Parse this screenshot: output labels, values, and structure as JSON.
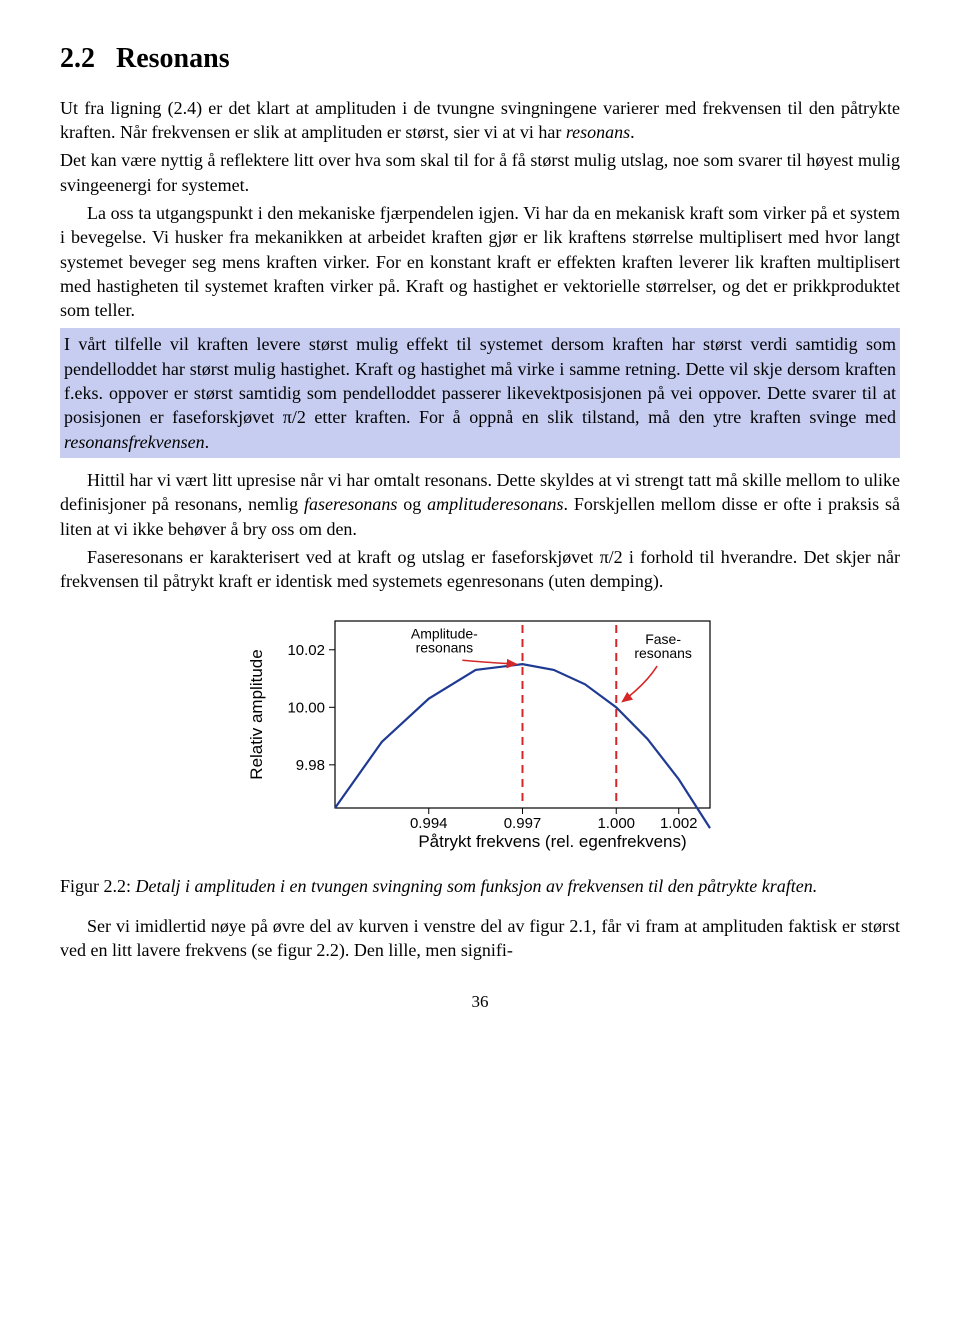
{
  "section": {
    "number": "2.2",
    "title": "Resonans"
  },
  "para1": "Ut fra ligning (2.4) er det klart at amplituden i de tvungne svingningene varierer med frekvensen til den påtrykte kraften. Når frekvensen er slik at amplituden er størst, sier vi at vi har ",
  "para1_em": "resonans",
  "para1_b": ".",
  "para2": "Det kan være nyttig å reflektere litt over hva som skal til for å få størst mulig utslag, noe som svarer til høyest mulig svingeenergi for systemet.",
  "para3": "La oss ta utgangspunkt i den mekaniske fjærpendelen igjen. Vi har da en mekanisk kraft som virker på et system i bevegelse. Vi husker fra mekanikken at arbeidet kraften gjør er lik kraftens størrelse multiplisert med hvor langt systemet beveger seg mens kraften virker. For en konstant kraft er effekten kraften leverer lik kraften multiplisert med hastigheten til systemet kraften virker på. Kraft og hastighet er vektorielle størrelser, og det er prikkproduktet som teller.",
  "highlight_a": "I vårt tilfelle vil kraften levere størst mulig effekt til systemet dersom kraften har størst verdi samtidig som pendelloddet har størst mulig hastighet. Kraft og hastighet må virke i samme retning. Dette vil skje dersom kraften f.eks. oppover er størst samtidig som pendelloddet passerer likevektposisjonen på vei oppover. Dette svarer til at posisjonen er faseforskjøvet π/2 etter kraften. For å oppnå en slik tilstand, må den ytre kraften svinge med ",
  "highlight_em": "resonansfrekvensen",
  "highlight_b": ".",
  "para4_a": "Hittil har vi vært litt upresise når vi har omtalt resonans. Dette skyldes at vi strengt tatt må skille mellom to ulike definisjoner på resonans, nemlig ",
  "para4_em1": "faseresonans",
  "para4_mid": " og ",
  "para4_em2": "amplituderesonans",
  "para4_b": ". Forskjellen mellom disse er ofte i praksis så liten at vi ikke behøver å bry oss om den.",
  "para5": "Faseresonans er karakterisert ved at kraft og utslag er faseforskjøvet π/2 i forhold til hverandre. Det skjer når frekvensen til påtrykt kraft er identisk med systemets egenresonans (uten demping).",
  "figure": {
    "type": "line",
    "ylabel": "Relativ amplitude",
    "xlabel": "Påtrykt frekvens (rel. egenfrekvens)",
    "ytick_labels": [
      "9.98",
      "10.00",
      "10.02"
    ],
    "ytick_values": [
      9.98,
      10.0,
      10.02
    ],
    "xtick_labels": [
      "0.994",
      "0.997",
      "1.000",
      "1.002"
    ],
    "xtick_values": [
      0.994,
      0.997,
      1.0,
      1.002
    ],
    "xlim": [
      0.991,
      1.003
    ],
    "ylim": [
      9.965,
      10.03
    ],
    "curve_x": [
      0.991,
      0.9925,
      0.994,
      0.9955,
      0.997,
      0.998,
      0.999,
      1.0,
      1.001,
      1.002,
      1.003
    ],
    "curve_y": [
      9.965,
      9.988,
      10.003,
      10.013,
      10.015,
      10.013,
      10.008,
      10.0,
      9.989,
      9.975,
      9.958
    ],
    "curve_color": "#1f3a93",
    "curve_width": 2.2,
    "vlines": [
      {
        "x": 0.997,
        "color": "#d62728",
        "dash": "8,6",
        "width": 2
      },
      {
        "x": 1.0,
        "color": "#d62728",
        "dash": "8,6",
        "width": 2
      }
    ],
    "annotations": [
      {
        "text_lines": [
          "Amplitude-",
          "resonans"
        ],
        "tx": 0.9945,
        "ty": 10.024,
        "arrow_to_x": 0.9968,
        "arrow_to_y": 10.015,
        "color": "#d62728"
      },
      {
        "text_lines": [
          "Fase-",
          "resonans"
        ],
        "tx": 1.0015,
        "ty": 10.022,
        "arrow_to_x": 1.0002,
        "arrow_to_y": 10.002,
        "color": "#d62728"
      }
    ],
    "background_color": "#ffffff",
    "axis_color": "#000000",
    "tick_fontsize": 15,
    "label_fontsize": 17
  },
  "caption_lead": "Figur 2.2: ",
  "caption_body": "Detalj i amplituden i en tvungen svingning som funksjon av frekvensen til den påtrykte kraften.",
  "para6": "Ser vi imidlertid nøye på øvre del av kurven i venstre del av figur 2.1, får vi fram at amplituden faktisk er størst ved en litt lavere frekvens (se figur 2.2). Den lille, men signifi-",
  "page_number": "36"
}
